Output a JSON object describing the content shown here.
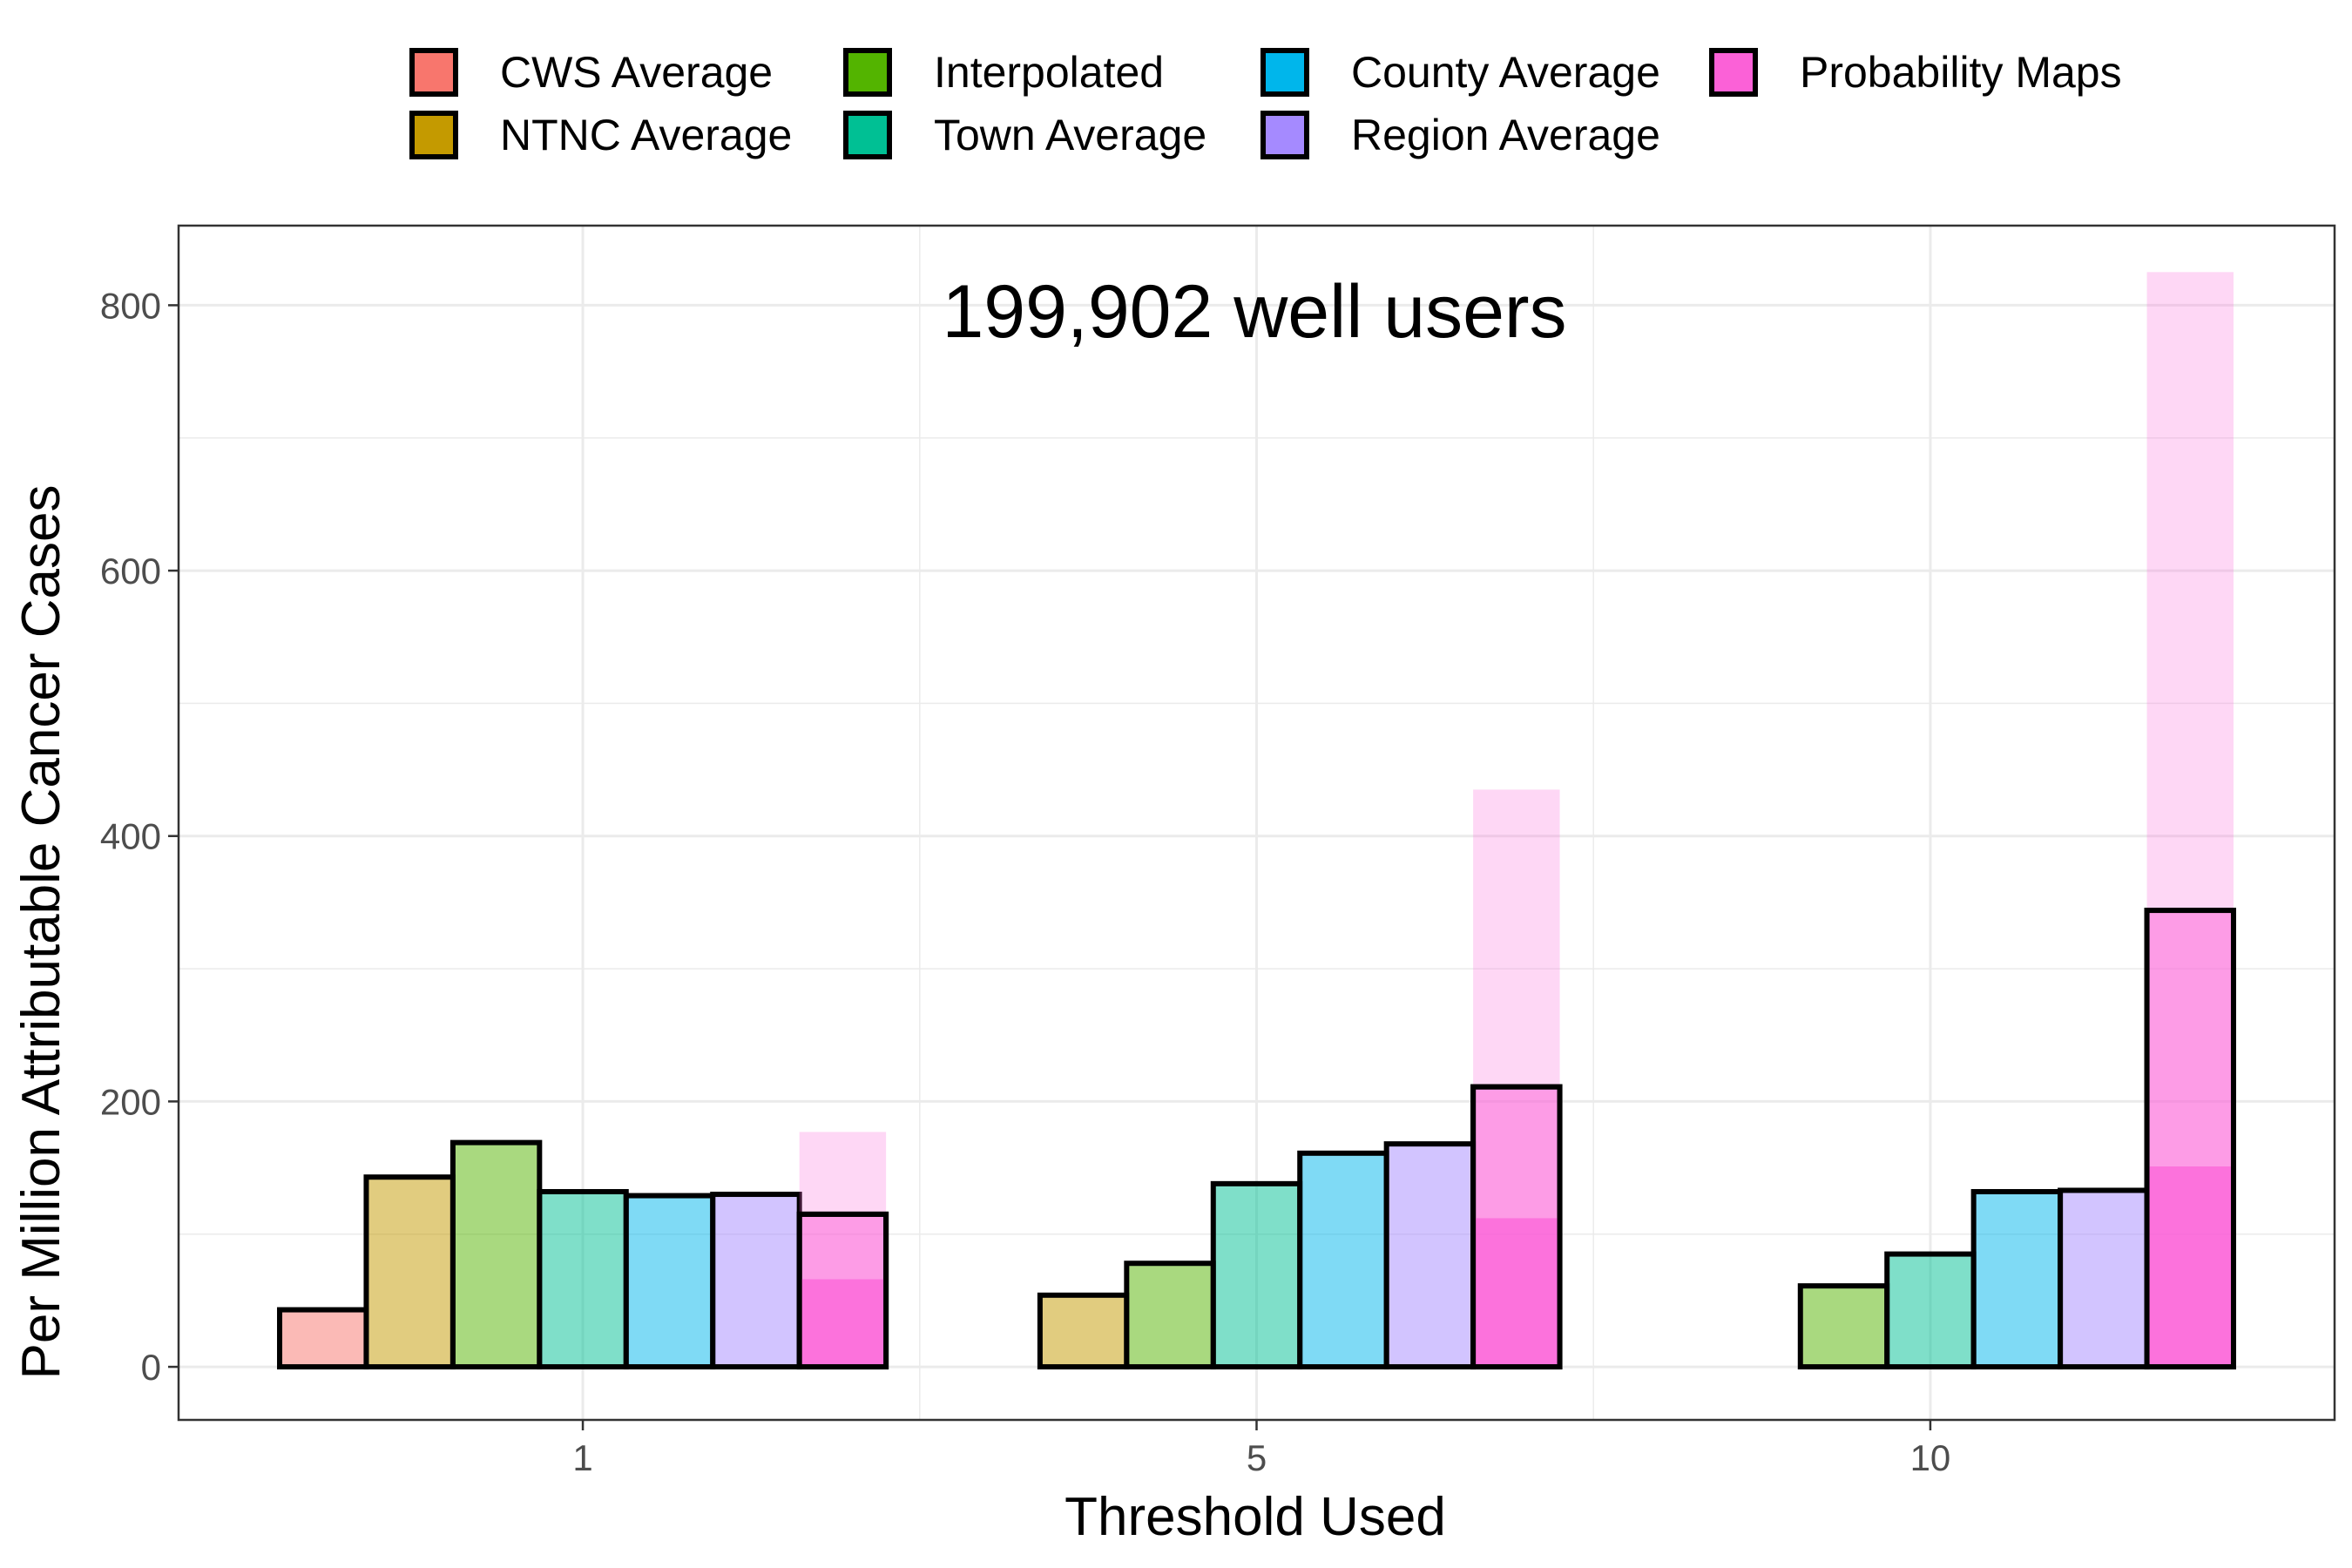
{
  "chart_data": {
    "type": "bar",
    "title": "199,902 well users",
    "xlabel": "Threshold Used",
    "ylabel": "Per Million Attributable Cancer Cases",
    "categories": [
      "1",
      "5",
      "10"
    ],
    "ylim": [
      -40,
      860
    ],
    "yticks": [
      0,
      200,
      400,
      600,
      800
    ],
    "grid": true,
    "legend_position": "top",
    "series": [
      {
        "name": "CWS Average",
        "color": "#F8766D",
        "values": [
          43,
          0,
          0
        ]
      },
      {
        "name": "NTNC Average",
        "color": "#C49A00",
        "values": [
          143,
          54,
          0
        ]
      },
      {
        "name": "Interpolated",
        "color": "#53B400",
        "values": [
          169,
          78,
          61
        ]
      },
      {
        "name": "Town Average",
        "color": "#00C094",
        "values": [
          132,
          138,
          85
        ]
      },
      {
        "name": "County Average",
        "color": "#00B6EB",
        "values": [
          129,
          161,
          132
        ]
      },
      {
        "name": "Region Average",
        "color": "#A58AFF",
        "values": [
          130,
          168,
          133
        ]
      },
      {
        "name": "Probability Maps",
        "color": "#FB61D7",
        "values": [
          115,
          211,
          344
        ],
        "lower": [
          66,
          112,
          151
        ],
        "upper": [
          177,
          435,
          825
        ]
      }
    ]
  }
}
